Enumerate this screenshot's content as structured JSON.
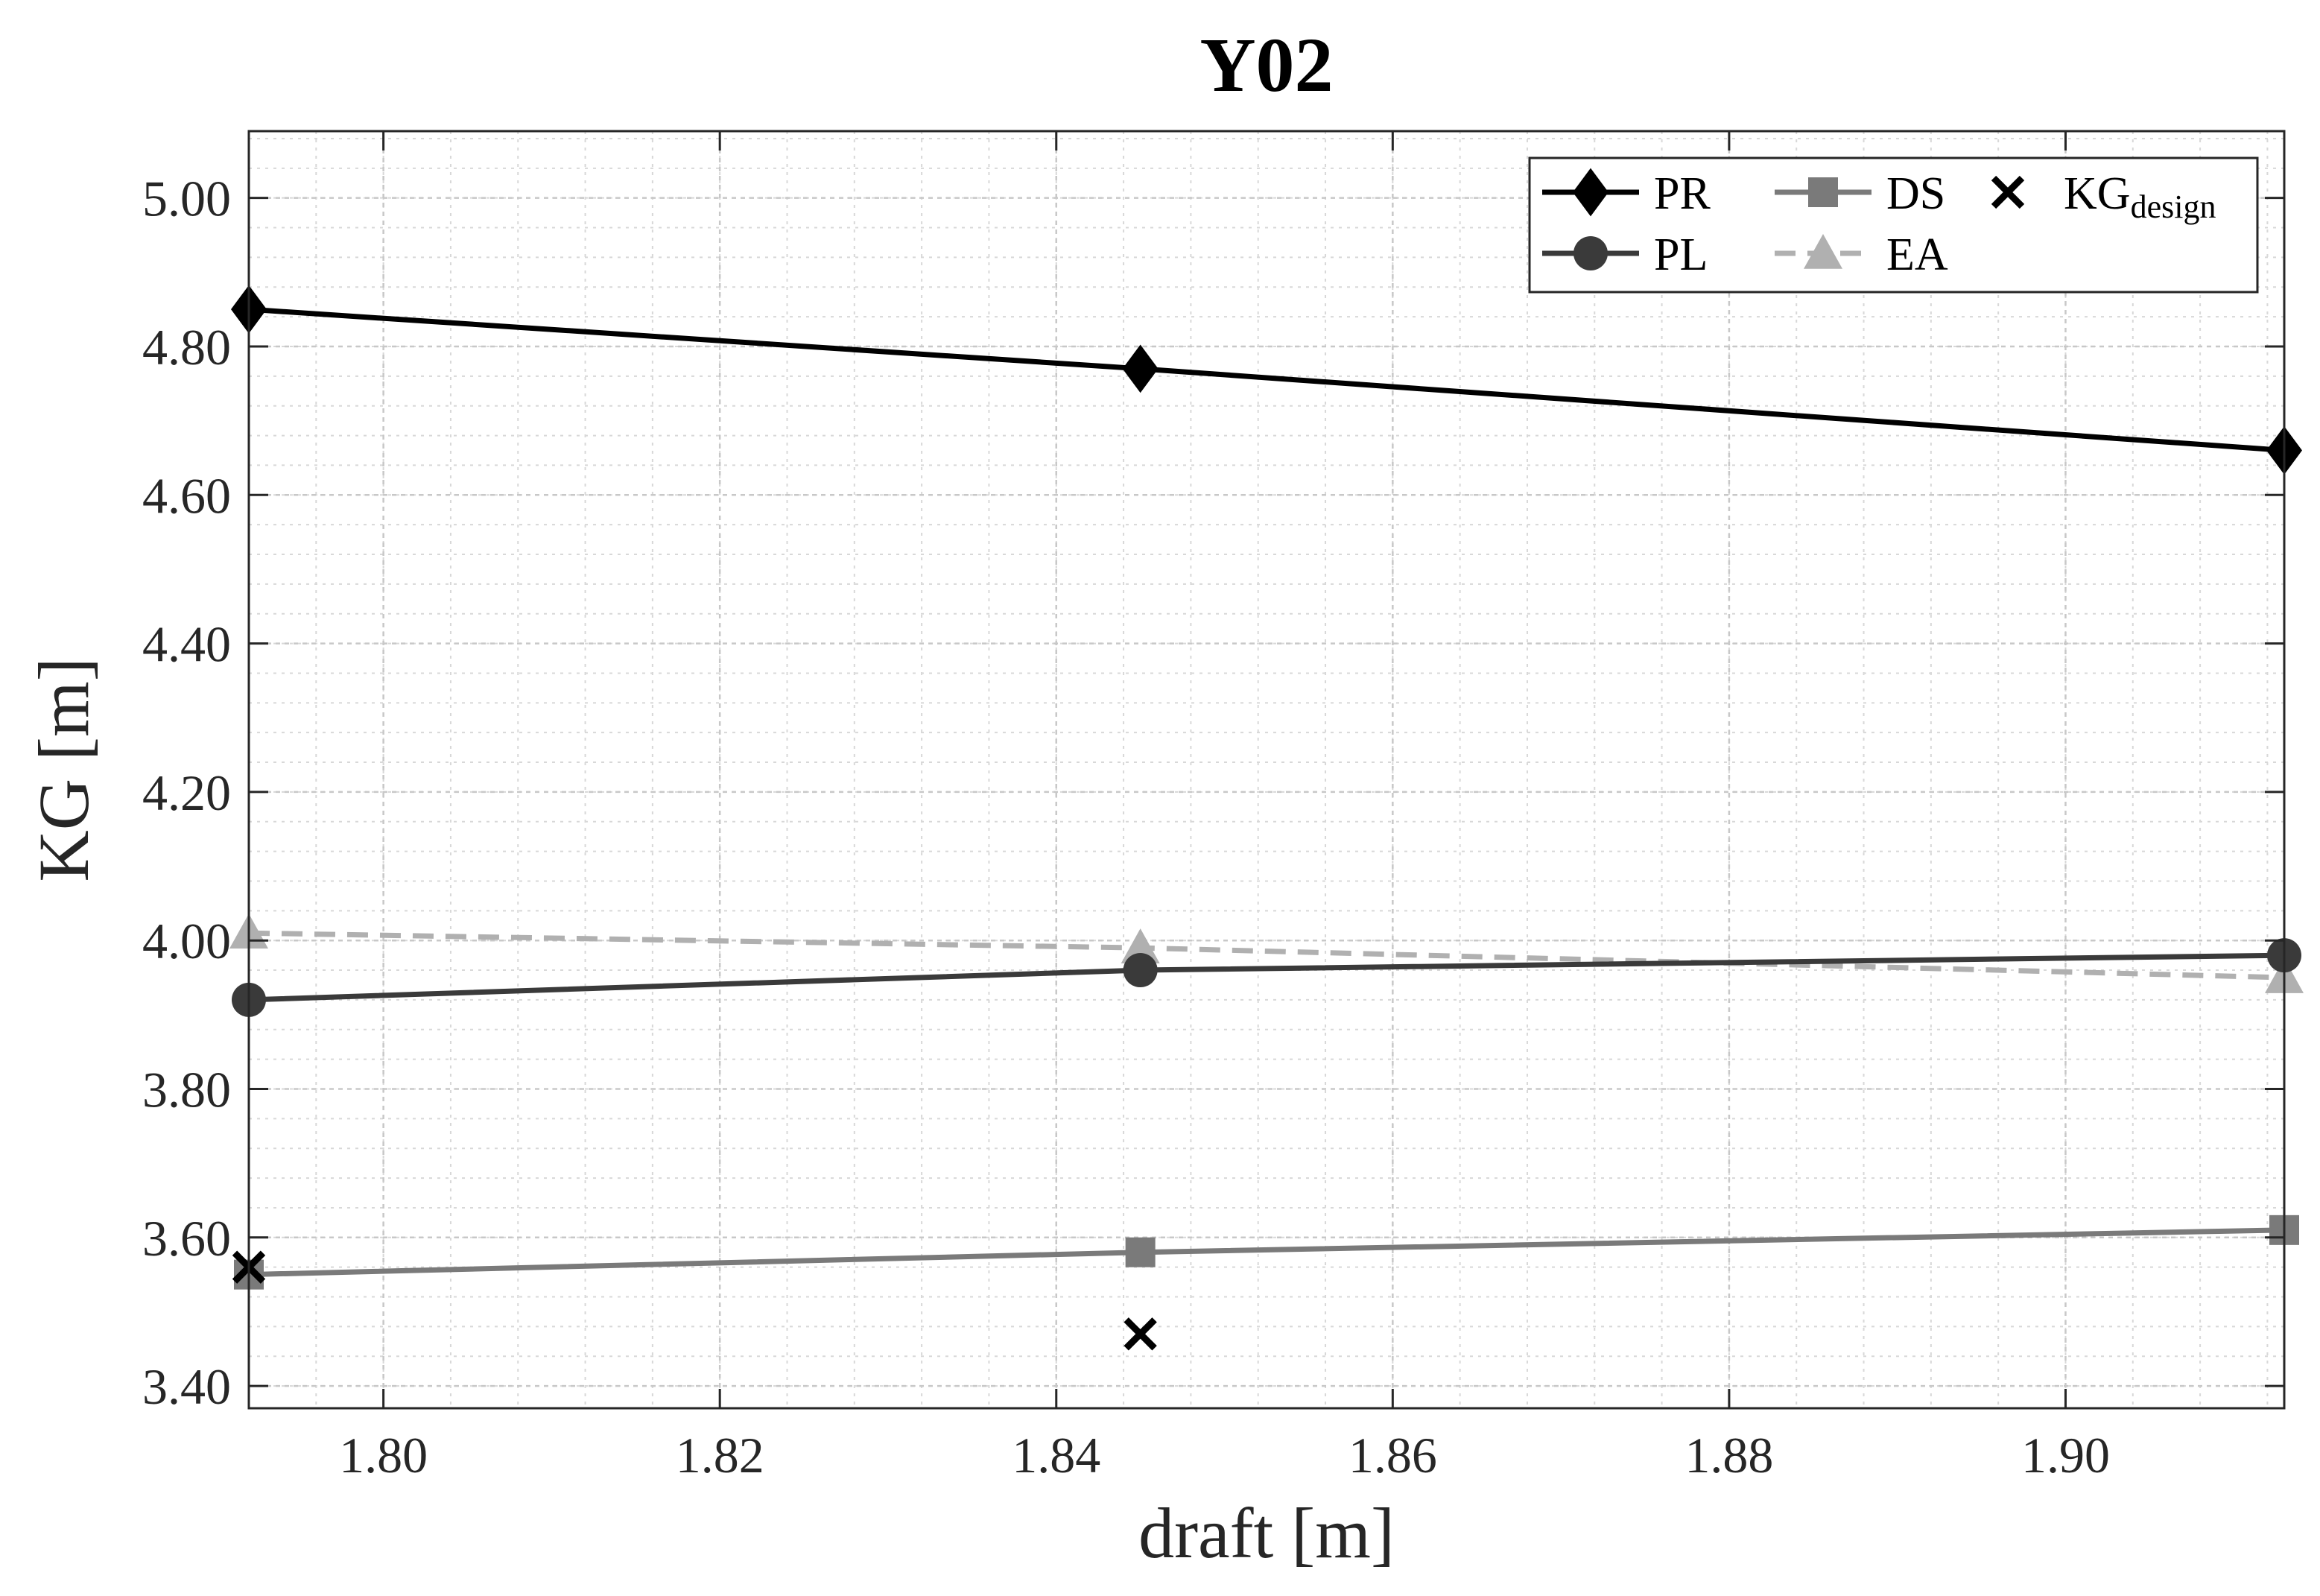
{
  "chart_data": {
    "type": "line",
    "title": "Y02",
    "xlabel": "draft [m]",
    "ylabel": "KG [m]",
    "xlim": [
      1.792,
      1.913
    ],
    "ylim": [
      3.37,
      5.09
    ],
    "xticks": [
      1.8,
      1.82,
      1.84,
      1.86,
      1.88,
      1.9
    ],
    "xtick_labels": [
      "1.80",
      "1.82",
      "1.84",
      "1.86",
      "1.88",
      "1.90"
    ],
    "yticks": [
      3.4,
      3.6,
      3.8,
      4.0,
      4.2,
      4.4,
      4.6,
      4.8,
      5.0
    ],
    "ytick_labels": [
      "3.40",
      "3.60",
      "3.80",
      "4.00",
      "4.20",
      "4.40",
      "4.60",
      "4.80",
      "5.00"
    ],
    "grid": true,
    "minor_grid": true,
    "legend_position": "top-right",
    "x": [
      1.792,
      1.845,
      1.913
    ],
    "series": [
      {
        "name": "PR",
        "marker": "diamond",
        "color": "#000000",
        "dash": "solid",
        "values": [
          4.85,
          4.77,
          4.66
        ]
      },
      {
        "name": "DS",
        "marker": "square",
        "color": "#7a7a7a",
        "dash": "solid",
        "values": [
          3.55,
          3.58,
          3.61
        ]
      },
      {
        "name": "PL",
        "marker": "circle",
        "color": "#3a3a3a",
        "dash": "solid",
        "values": [
          3.92,
          3.96,
          3.98
        ]
      },
      {
        "name": "EA",
        "marker": "triangle",
        "color": "#b0b0b0",
        "dash": "dashed",
        "values": [
          4.01,
          3.99,
          3.95
        ]
      }
    ],
    "design_points": {
      "name": "KG",
      "subscript": "design",
      "marker": "x",
      "color": "#000000",
      "x": [
        1.792,
        1.845
      ],
      "values": [
        3.56,
        3.47
      ]
    }
  }
}
